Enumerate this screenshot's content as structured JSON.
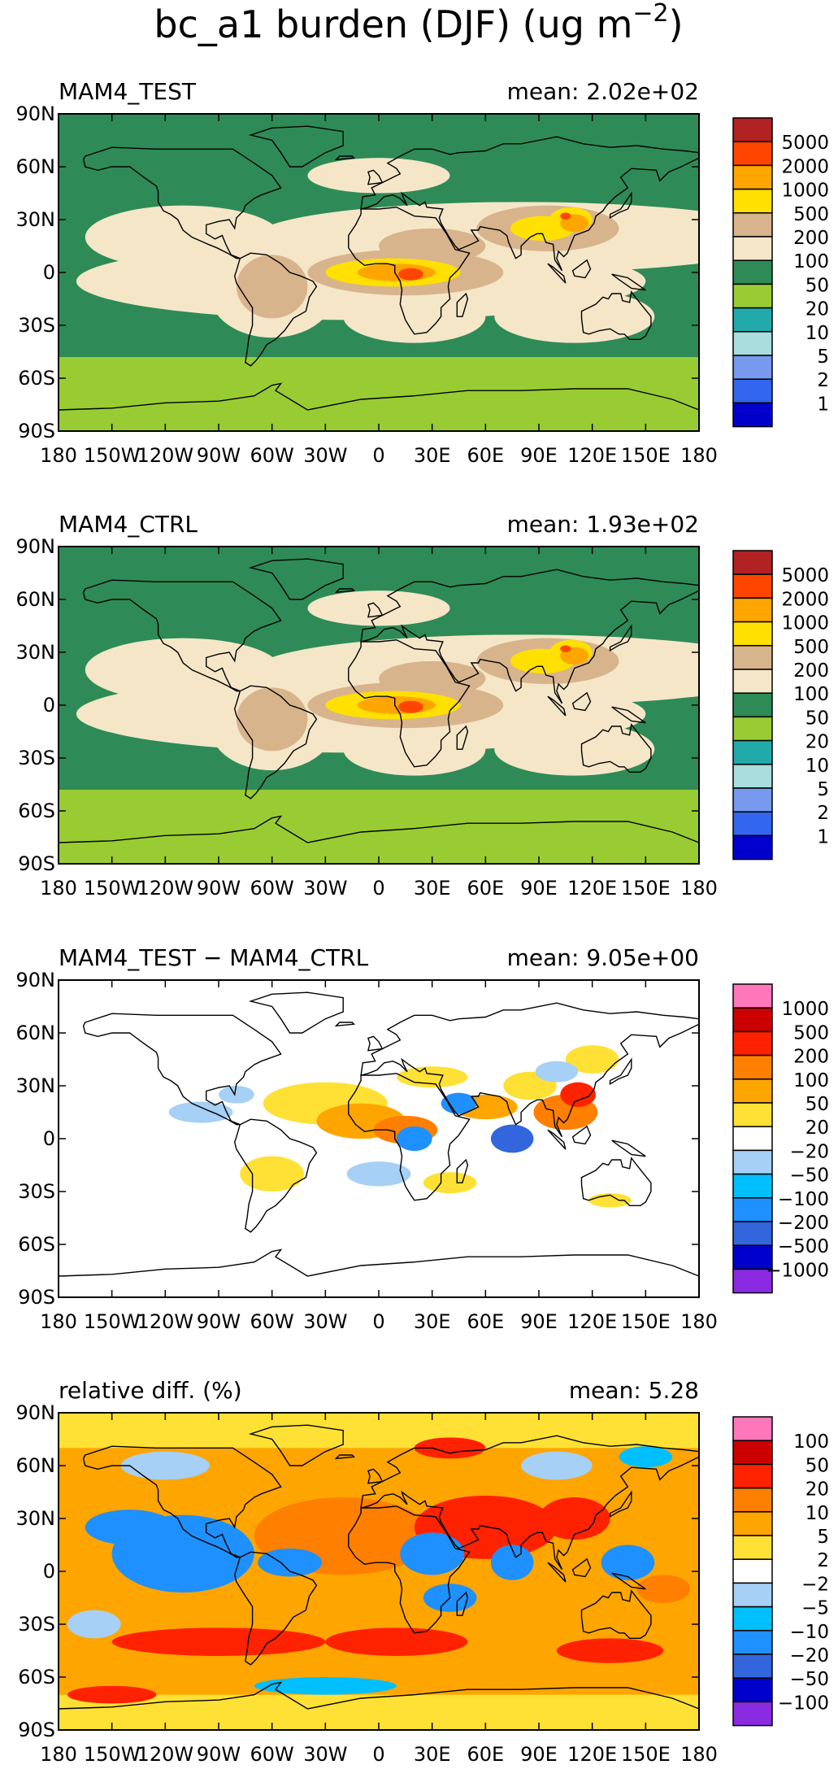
{
  "figure": {
    "title_main": "bc_a1 burden (DJF) (ug m",
    "title_sup": "−2",
    "title_close": ")"
  },
  "colors": {
    "abs_scale": [
      "#0000cc",
      "#3366ee",
      "#7799ee",
      "#aadddd",
      "#22aaaa",
      "#99cc33",
      "#2e8b57",
      "#f5e6c8",
      "#d8b48c",
      "#ffe000",
      "#ffa500",
      "#ff4500",
      "#b22222"
    ],
    "diff_scale": [
      "#8a2be2",
      "#0000cc",
      "#3366dd",
      "#1e90ff",
      "#00bfff",
      "#a6d0f5",
      "#ffffff",
      "#ffe135",
      "#ffa500",
      "#ff7f00",
      "#ff2200",
      "#cc0000",
      "#ff77bb"
    ],
    "coast": "#000000"
  },
  "chart_data": [
    {
      "type": "heatmap",
      "panel_label": "MAM4_TEST",
      "mean_label": "mean: 2.02e+02",
      "mean": 202,
      "units": "ug m-2",
      "legend_labels": [
        "5000",
        "2000",
        "1000",
        "500",
        "200",
        "100",
        "50",
        "20",
        "10",
        "5",
        "2",
        "1"
      ],
      "xticks": [
        "180",
        "150W",
        "120W",
        "90W",
        "60W",
        "30W",
        "0",
        "30E",
        "60E",
        "90E",
        "120E",
        "150E",
        "180"
      ],
      "yticks": [
        "90N",
        "60N",
        "30N",
        "0",
        "30S",
        "60S",
        "90S"
      ],
      "xlim": [
        -180,
        180
      ],
      "ylim": [
        -90,
        90
      ]
    },
    {
      "type": "heatmap",
      "panel_label": "MAM4_CTRL",
      "mean_label": "mean: 1.93e+02",
      "mean": 193,
      "units": "ug m-2",
      "legend_labels": [
        "5000",
        "2000",
        "1000",
        "500",
        "200",
        "100",
        "50",
        "20",
        "10",
        "5",
        "2",
        "1"
      ],
      "xticks": [
        "180",
        "150W",
        "120W",
        "90W",
        "60W",
        "30W",
        "0",
        "30E",
        "60E",
        "90E",
        "120E",
        "150E",
        "180"
      ],
      "yticks": [
        "90N",
        "60N",
        "30N",
        "0",
        "30S",
        "60S",
        "90S"
      ],
      "xlim": [
        -180,
        180
      ],
      "ylim": [
        -90,
        90
      ]
    },
    {
      "type": "heatmap",
      "panel_label": "MAM4_TEST − MAM4_CTRL",
      "mean_label": "mean: 9.05e+00",
      "mean": 9.05,
      "units": "ug m-2",
      "legend_labels": [
        "1000",
        "500",
        "200",
        "100",
        "50",
        "20",
        "−20",
        "−50",
        "−100",
        "−200",
        "−500",
        "−1000"
      ],
      "xticks": [
        "180",
        "150W",
        "120W",
        "90W",
        "60W",
        "30W",
        "0",
        "30E",
        "60E",
        "90E",
        "120E",
        "150E",
        "180"
      ],
      "yticks": [
        "90N",
        "60N",
        "30N",
        "0",
        "30S",
        "60S",
        "90S"
      ],
      "xlim": [
        -180,
        180
      ],
      "ylim": [
        -90,
        90
      ]
    },
    {
      "type": "heatmap",
      "panel_label": "relative diff. (%)",
      "mean_label": "mean:  5.28",
      "mean": 5.28,
      "units": "%",
      "legend_labels": [
        "100",
        "50",
        "20",
        "10",
        "5",
        "2",
        "−2",
        "−5",
        "−10",
        "−20",
        "−50",
        "−100"
      ],
      "xticks": [
        "180",
        "150W",
        "120W",
        "90W",
        "60W",
        "30W",
        "0",
        "30E",
        "60E",
        "90E",
        "120E",
        "150E",
        "180"
      ],
      "yticks": [
        "90N",
        "60N",
        "30N",
        "0",
        "30S",
        "60S",
        "90S"
      ],
      "xlim": [
        -180,
        180
      ],
      "ylim": [
        -90,
        90
      ]
    }
  ]
}
